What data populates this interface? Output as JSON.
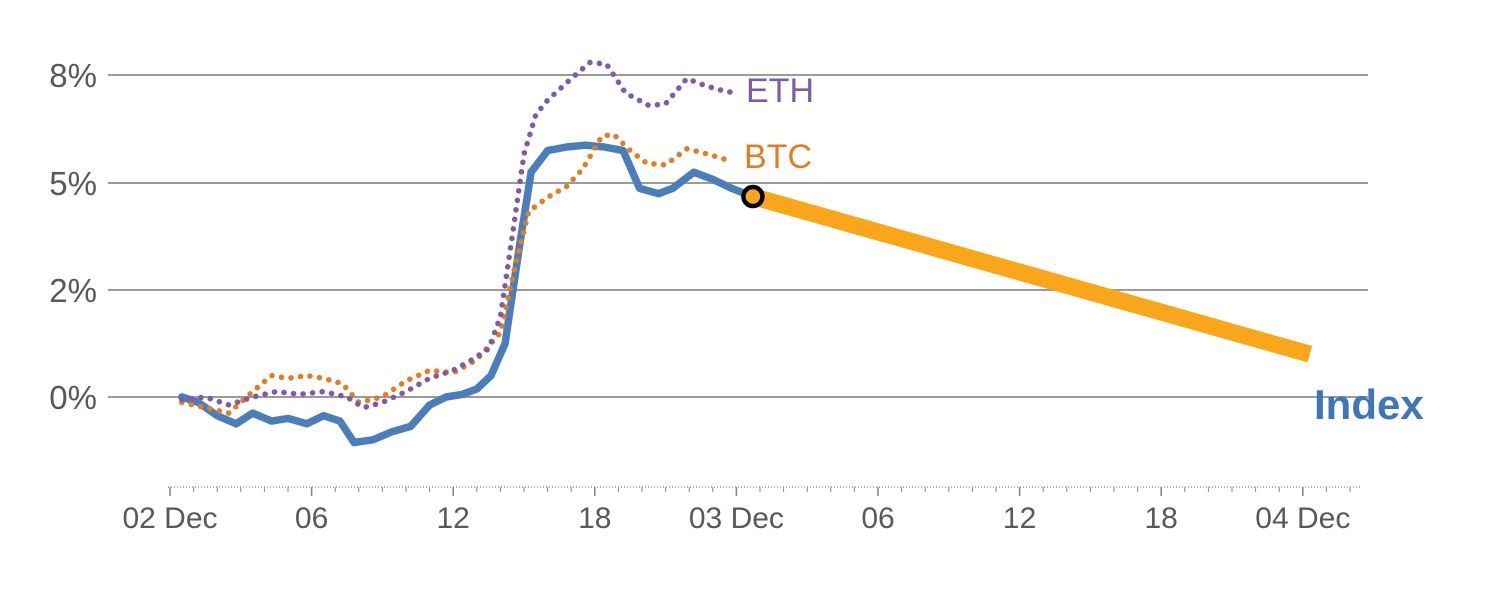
{
  "chart_data": {
    "type": "line",
    "title": "",
    "unit": "%",
    "y_axis": {
      "gridlines": true,
      "ticks": [
        {
          "v": 8,
          "label": "8%"
        },
        {
          "v": 5,
          "label": "5%"
        },
        {
          "v": 2,
          "label": "2%"
        },
        {
          "v": 0,
          "label": "0%"
        }
      ]
    },
    "x_axis": {
      "range_hours": [
        0,
        50.5
      ],
      "minor_tick_every_hours": 1,
      "ticks": [
        {
          "t": 0,
          "label": "02 Dec"
        },
        {
          "t": 6,
          "label": "06"
        },
        {
          "t": 12,
          "label": "12"
        },
        {
          "t": 18,
          "label": "18"
        },
        {
          "t": 24,
          "label": "03 Dec"
        },
        {
          "t": 30,
          "label": "06"
        },
        {
          "t": 36,
          "label": "12"
        },
        {
          "t": 42,
          "label": "18"
        },
        {
          "t": 48,
          "label": "04 Dec"
        }
      ]
    },
    "series": [
      {
        "name": "Index",
        "style": "solid",
        "color": "#4a7ebb",
        "points": [
          [
            0.5,
            0.0
          ],
          [
            1.2,
            -0.1
          ],
          [
            2,
            -0.35
          ],
          [
            2.8,
            -0.5
          ],
          [
            3.5,
            -0.3
          ],
          [
            4.3,
            -0.45
          ],
          [
            5,
            -0.4
          ],
          [
            5.8,
            -0.5
          ],
          [
            6.5,
            -0.35
          ],
          [
            7.2,
            -0.45
          ],
          [
            7.8,
            -0.85
          ],
          [
            8.6,
            -0.8
          ],
          [
            9.4,
            -0.65
          ],
          [
            10.2,
            -0.55
          ],
          [
            11,
            -0.15
          ],
          [
            11.7,
            0.0
          ],
          [
            12.4,
            0.05
          ],
          [
            13,
            0.15
          ],
          [
            13.6,
            0.4
          ],
          [
            14.2,
            1.0
          ],
          [
            14.8,
            3.2
          ],
          [
            15.3,
            5.3
          ],
          [
            16,
            5.9
          ],
          [
            16.8,
            6.0
          ],
          [
            17.6,
            6.05
          ],
          [
            18.4,
            6.0
          ],
          [
            19.2,
            5.9
          ],
          [
            19.9,
            4.85
          ],
          [
            20.7,
            4.7
          ],
          [
            21.3,
            4.85
          ],
          [
            22.2,
            5.3
          ],
          [
            23,
            5.1
          ],
          [
            23.8,
            4.85
          ],
          [
            24.7,
            4.62
          ]
        ]
      },
      {
        "name": "BTC",
        "style": "dotted",
        "color": "#e07e24",
        "points": [
          [
            0.5,
            -0.1
          ],
          [
            1.5,
            -0.2
          ],
          [
            2.5,
            -0.3
          ],
          [
            3.5,
            0.1
          ],
          [
            4.3,
            0.4
          ],
          [
            5,
            0.35
          ],
          [
            5.8,
            0.4
          ],
          [
            6.5,
            0.35
          ],
          [
            7.3,
            0.25
          ],
          [
            8,
            -0.1
          ],
          [
            9,
            0.0
          ],
          [
            10,
            0.3
          ],
          [
            11,
            0.5
          ],
          [
            12,
            0.45
          ],
          [
            13,
            0.7
          ],
          [
            14,
            1.2
          ],
          [
            14.6,
            2.6
          ],
          [
            15.2,
            4.2
          ],
          [
            16,
            4.6
          ],
          [
            16.8,
            4.9
          ],
          [
            17.5,
            5.4
          ],
          [
            18.3,
            6.3
          ],
          [
            18.8,
            6.35
          ],
          [
            19.5,
            5.9
          ],
          [
            20.2,
            5.55
          ],
          [
            21,
            5.5
          ],
          [
            21.9,
            5.95
          ],
          [
            22.8,
            5.8
          ],
          [
            23.8,
            5.6
          ]
        ]
      },
      {
        "name": "ETH",
        "style": "dotted",
        "color": "#7e5ba6",
        "points": [
          [
            0.5,
            -0.05
          ],
          [
            1.5,
            0.0
          ],
          [
            2.5,
            -0.15
          ],
          [
            3.5,
            0.0
          ],
          [
            4.5,
            0.1
          ],
          [
            5.5,
            0.05
          ],
          [
            6.5,
            0.1
          ],
          [
            7.5,
            0.0
          ],
          [
            8.2,
            -0.2
          ],
          [
            9,
            -0.1
          ],
          [
            10,
            0.1
          ],
          [
            11,
            0.35
          ],
          [
            12,
            0.5
          ],
          [
            12.8,
            0.7
          ],
          [
            13.5,
            0.9
          ],
          [
            14,
            1.5
          ],
          [
            14.5,
            3.5
          ],
          [
            15,
            5.8
          ],
          [
            15.5,
            6.9
          ],
          [
            16,
            7.3
          ],
          [
            17,
            7.9
          ],
          [
            17.8,
            8.35
          ],
          [
            18.5,
            8.3
          ],
          [
            19.3,
            7.5
          ],
          [
            20.3,
            7.15
          ],
          [
            21,
            7.2
          ],
          [
            21.9,
            7.9
          ],
          [
            22.7,
            7.7
          ],
          [
            23.5,
            7.55
          ],
          [
            24,
            7.5
          ]
        ]
      }
    ],
    "projection": {
      "name": "Index projection",
      "color": "#faa61a",
      "from": {
        "t": 24.7,
        "v": 4.62
      },
      "to": {
        "t": 48.3,
        "v": 0.8
      }
    },
    "marker": {
      "t": 24.7,
      "v": 4.62,
      "fill": "#faa61a",
      "ring_color": "#000000"
    },
    "series_labels": {
      "eth": "ETH",
      "btc": "BTC",
      "index": "Index"
    },
    "colors": {
      "eth": "#7e5ba6",
      "btc": "#e07e24",
      "index_line": "#4a7ebb",
      "index_label": "#3e76b8",
      "projection": "#faa61a",
      "gridline": "#9b9b9b",
      "axis_line": "#8a8a8a",
      "axis_text": "#595959"
    }
  }
}
